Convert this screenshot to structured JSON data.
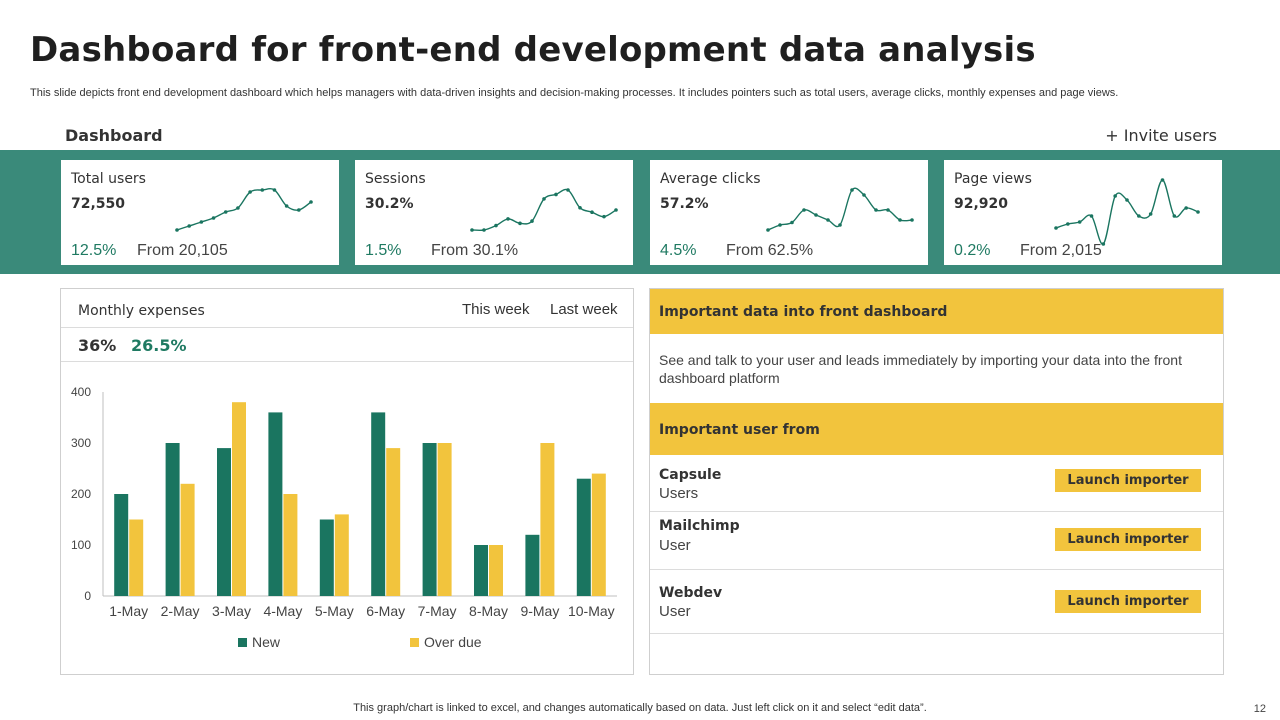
{
  "header": {
    "title": "Dashboard for front-end development data analysis",
    "subtitle": "This slide depicts front end development dashboard which helps managers with data-driven insights and decision-making processes. It includes pointers such as total users, average clicks, monthly expenses and page views."
  },
  "dashboard": {
    "label": "Dashboard",
    "invite_label": "+ Invite users"
  },
  "cards": [
    {
      "title": "Total users",
      "value": "72,550",
      "change": "12.5%",
      "from": "From 20,105",
      "spark": [
        2,
        3,
        4,
        5,
        6.5,
        7.5,
        11.5,
        12,
        12,
        8,
        7,
        9
      ]
    },
    {
      "title": "Sessions",
      "value": "30.2%",
      "change": "1.5%",
      "from": "From 30.1%",
      "spark": [
        2,
        2,
        3,
        4.5,
        3.5,
        4,
        9,
        10,
        11,
        7,
        6,
        5,
        6.5
      ]
    },
    {
      "title": "Average clicks",
      "value": "57.2%",
      "change": "4.5%",
      "from": "From 62.5%",
      "spark": [
        2,
        3,
        3.5,
        6,
        5,
        4,
        3,
        10,
        9,
        6,
        6,
        4,
        4
      ]
    },
    {
      "title": "Page views",
      "value": "92,920",
      "change": "0.2%",
      "from": "From 2,015",
      "spark": [
        5,
        6,
        6.5,
        8,
        1,
        13,
        12,
        8,
        8.5,
        17,
        8,
        10,
        9
      ]
    }
  ],
  "expenses": {
    "title": "Monthly expenses",
    "tab_this_week": "This week",
    "tab_last_week": "Last week",
    "pct_a": "36%",
    "pct_b": "26.5%"
  },
  "colors": {
    "teal": "#1a7560",
    "yellow": "#f2c43d",
    "band": "#3a8a7a"
  },
  "chart_data": {
    "type": "bar",
    "categories": [
      "1-May",
      "2-May",
      "3-May",
      "4-May",
      "5-May",
      "6-May",
      "7-May",
      "8-May",
      "9-May",
      "10-May"
    ],
    "series": [
      {
        "name": "New",
        "values": [
          200,
          300,
          290,
          360,
          150,
          360,
          300,
          100,
          120,
          230
        ]
      },
      {
        "name": "Over due",
        "values": [
          150,
          220,
          380,
          200,
          160,
          290,
          300,
          100,
          300,
          240
        ]
      }
    ],
    "yticks": [
      0,
      100,
      200,
      300,
      400
    ],
    "ylim": [
      0,
      400
    ],
    "legend_position": "bottom"
  },
  "info": {
    "heading1": "Important data into front dashboard",
    "description": "See and talk to your user and leads immediately by importing your data into the front dashboard platform",
    "heading2": "Important user from",
    "rows": [
      {
        "name": "Capsule",
        "sub": "Users",
        "button": "Launch importer"
      },
      {
        "name": "Mailchimp",
        "sub": "User",
        "button": "Launch importer"
      },
      {
        "name": "Webdev",
        "sub": "User",
        "button": "Launch importer"
      }
    ]
  },
  "footer": {
    "note": "This graph/chart is linked to excel,  and changes automatically based on data. Just left click on it and select “edit data”.",
    "page_number": "12"
  }
}
